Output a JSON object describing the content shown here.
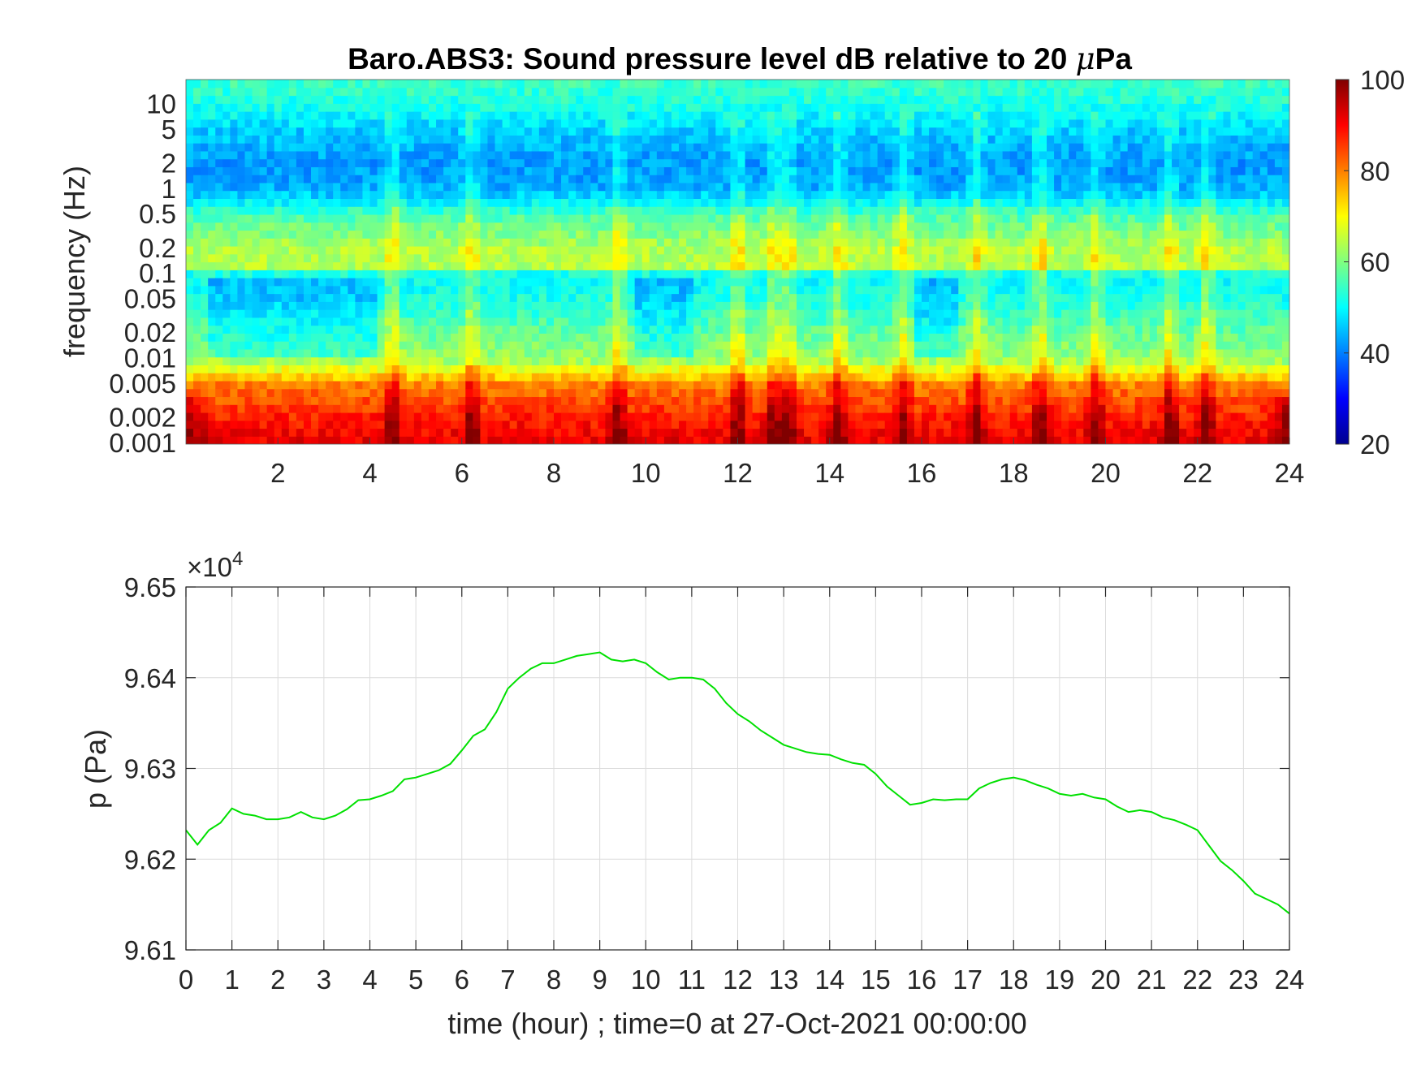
{
  "chart_data": [
    {
      "type": "heatmap",
      "title": "Baro.ABS3: Sound pressure level dB relative to 20 ",
      "title_mu": "μ",
      "title_suffix": "Pa",
      "xlabel": "",
      "ylabel": "frequency (Hz)",
      "x_range": [
        0,
        24
      ],
      "x_ticks": [
        2,
        4,
        6,
        8,
        10,
        12,
        14,
        16,
        18,
        20,
        22,
        24
      ],
      "y_scale": "log",
      "y_range": [
        0.001,
        20
      ],
      "y_ticks": [
        {
          "value": 0.001,
          "label": "0.001"
        },
        {
          "value": 0.002,
          "label": "0.002"
        },
        {
          "value": 0.005,
          "label": "0.005"
        },
        {
          "value": 0.01,
          "label": "0.01"
        },
        {
          "value": 0.02,
          "label": "0.02"
        },
        {
          "value": 0.05,
          "label": "0.05"
        },
        {
          "value": 0.1,
          "label": "0.1"
        },
        {
          "value": 0.2,
          "label": "0.2"
        },
        {
          "value": 0.5,
          "label": "0.5"
        },
        {
          "value": 1,
          "label": "1"
        },
        {
          "value": 2,
          "label": "2"
        },
        {
          "value": 5,
          "label": "5"
        },
        {
          "value": 10,
          "label": "10"
        }
      ],
      "colormap": "jet",
      "color_range": [
        20,
        100
      ],
      "colorbar_ticks": [
        20,
        40,
        60,
        80,
        100
      ],
      "grid": false,
      "level_profile_db": [
        {
          "f": 0.001,
          "db": 92
        },
        {
          "f": 0.002,
          "db": 88
        },
        {
          "f": 0.005,
          "db": 80
        },
        {
          "f": 0.01,
          "db": 62
        },
        {
          "f": 0.02,
          "db": 58
        },
        {
          "f": 0.05,
          "db": 52
        },
        {
          "f": 0.1,
          "db": 50
        },
        {
          "f": 0.12,
          "db": 64
        },
        {
          "f": 0.2,
          "db": 64
        },
        {
          "f": 0.5,
          "db": 56
        },
        {
          "f": 1,
          "db": 44
        },
        {
          "f": 2,
          "db": 42
        },
        {
          "f": 5,
          "db": 46
        },
        {
          "f": 10,
          "db": 52
        },
        {
          "f": 20,
          "db": 55
        }
      ],
      "event_hours": [
        4.5,
        6.2,
        9.4,
        12.0,
        12.8,
        13.1,
        14.2,
        15.6,
        17.2,
        18.6,
        19.8,
        21.4,
        22.2
      ],
      "quiet_intervals": [
        [
          0.5,
          4.2
        ],
        [
          9.8,
          11.0
        ],
        [
          15.8,
          16.8
        ]
      ]
    },
    {
      "type": "line",
      "title": "",
      "xlabel": "time (hour) ; time=0 at 27-Oct-2021 00:00:00",
      "ylabel": "p (Pa)",
      "y_exponent_base": "×10",
      "y_exponent": "4",
      "xlim": [
        0,
        24
      ],
      "ylim": [
        9.61,
        9.65
      ],
      "x_ticks": [
        0,
        1,
        2,
        3,
        4,
        5,
        6,
        7,
        8,
        9,
        10,
        11,
        12,
        13,
        14,
        15,
        16,
        17,
        18,
        19,
        20,
        21,
        22,
        23,
        24
      ],
      "y_ticks": [
        "9.61",
        "9.62",
        "9.63",
        "9.64",
        "9.65"
      ],
      "grid": true,
      "line_color": "#00e000",
      "series": [
        {
          "x": [
            0,
            0.25,
            0.5,
            0.75,
            1.0,
            1.25,
            1.5,
            1.75,
            2.0,
            2.25,
            2.5,
            2.75,
            3.0,
            3.25,
            3.5,
            3.75,
            4.0,
            4.25,
            4.5,
            4.75,
            5.0,
            5.25,
            5.5,
            5.75,
            6.0,
            6.25,
            6.5,
            6.75,
            7.0,
            7.25,
            7.5,
            7.75,
            8.0,
            8.25,
            8.5,
            8.75,
            9.0,
            9.25,
            9.5,
            9.75,
            10.0,
            10.25,
            10.5,
            10.75,
            11.0,
            11.25,
            11.5,
            11.75,
            12.0,
            12.25,
            12.5,
            12.75,
            13.0,
            13.25,
            13.5,
            13.75,
            14.0,
            14.25,
            14.5,
            14.75,
            15.0,
            15.25,
            15.5,
            15.75,
            16.0,
            16.25,
            16.5,
            16.75,
            17.0,
            17.25,
            17.5,
            17.75,
            18.0,
            18.25,
            18.5,
            18.75,
            19.0,
            19.25,
            19.5,
            19.75,
            20.0,
            20.25,
            20.5,
            20.75,
            21.0,
            21.25,
            21.5,
            21.75,
            22.0,
            22.25,
            22.5,
            22.75,
            23.0,
            23.25,
            23.5,
            23.75,
            24.0
          ],
          "y": [
            9.6232,
            9.6216,
            9.6232,
            9.624,
            9.6256,
            9.625,
            9.6248,
            9.6244,
            9.6244,
            9.6246,
            9.6252,
            9.6246,
            9.6244,
            9.6248,
            9.6255,
            9.6265,
            9.6266,
            9.627,
            9.6275,
            9.6288,
            9.629,
            9.6294,
            9.6298,
            9.6305,
            9.632,
            9.6336,
            9.6343,
            9.6362,
            9.6388,
            9.64,
            9.641,
            9.6416,
            9.6416,
            9.642,
            9.6424,
            9.6426,
            9.6428,
            9.642,
            9.6418,
            9.642,
            9.6416,
            9.6406,
            9.6398,
            9.64,
            9.64,
            9.6398,
            9.6388,
            9.6372,
            9.636,
            9.6352,
            9.6342,
            9.6334,
            9.6326,
            9.6322,
            9.6318,
            9.6316,
            9.6315,
            9.631,
            9.6306,
            9.6304,
            9.6294,
            9.628,
            9.627,
            9.626,
            9.6262,
            9.6266,
            9.6265,
            9.6266,
            9.6266,
            9.6278,
            9.6284,
            9.6288,
            9.629,
            9.6287,
            9.6282,
            9.6278,
            9.6272,
            9.627,
            9.6272,
            9.6268,
            9.6266,
            9.6258,
            9.6252,
            9.6254,
            9.6252,
            9.6246,
            9.6243,
            9.6238,
            9.6232,
            9.6215,
            9.6198,
            9.6188,
            9.6176,
            9.6162,
            9.6156,
            9.615,
            9.614
          ]
        }
      ]
    }
  ]
}
